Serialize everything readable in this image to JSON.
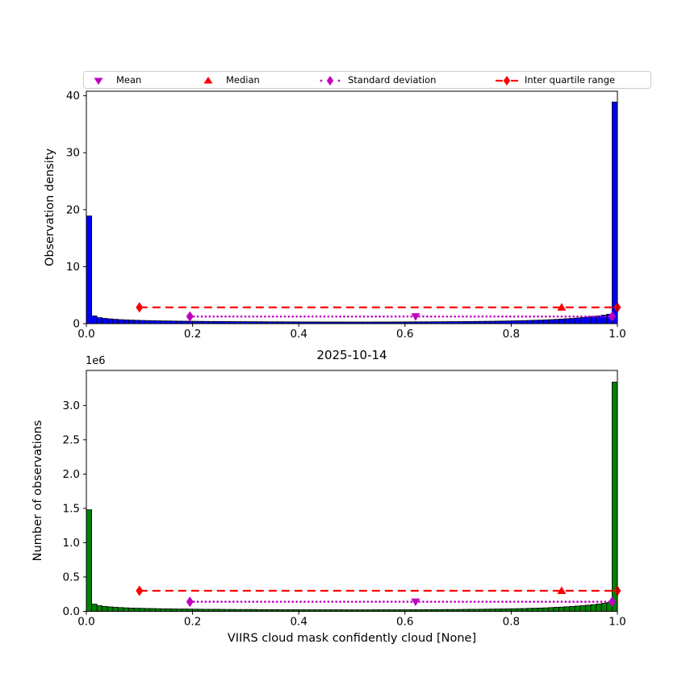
{
  "figure": {
    "background": "#ffffff",
    "legend": {
      "position": "top",
      "columns": 4,
      "items": [
        {
          "label": "Mean",
          "marker": "triangle-down",
          "line": "none",
          "color": "#bf00bf"
        },
        {
          "label": "Median",
          "marker": "triangle-up",
          "line": "none",
          "color": "#ff0000"
        },
        {
          "label": "Standard deviation",
          "marker": "thin-diamond",
          "line": "dotted",
          "color": "#bf00bf"
        },
        {
          "label": "Inter quartile range",
          "marker": "thin-diamond",
          "line": "dashed",
          "color": "#ff0000"
        }
      ]
    }
  },
  "chart_data": [
    {
      "type": "bar",
      "subtype": "histogram",
      "title": "",
      "ylabel": "Observation density",
      "xlabel": "",
      "bar_color": "#0000ff",
      "bar_edge_color": "#000000",
      "grid": false,
      "xlim": [
        0.0,
        1.0
      ],
      "ylim": [
        0,
        40.8
      ],
      "xticks": [
        0.0,
        0.2,
        0.4,
        0.6,
        0.8,
        1.0
      ],
      "xtick_labels": [
        "0.0",
        "0.2",
        "0.4",
        "0.6",
        "0.8",
        "1.0"
      ],
      "yticks": [
        0,
        10,
        20,
        30,
        40
      ],
      "ytick_labels": [
        "0",
        "10",
        "20",
        "30",
        "40"
      ],
      "bin_start": 0.0,
      "bin_width": 0.01,
      "values": [
        18.9,
        1.35,
        1.05,
        0.92,
        0.83,
        0.76,
        0.7,
        0.66,
        0.62,
        0.59,
        0.56,
        0.54,
        0.52,
        0.5,
        0.48,
        0.47,
        0.45,
        0.44,
        0.43,
        0.42,
        0.41,
        0.4,
        0.39,
        0.38,
        0.38,
        0.37,
        0.36,
        0.36,
        0.35,
        0.35,
        0.34,
        0.34,
        0.33,
        0.33,
        0.32,
        0.32,
        0.32,
        0.31,
        0.31,
        0.31,
        0.3,
        0.3,
        0.3,
        0.3,
        0.29,
        0.29,
        0.29,
        0.29,
        0.29,
        0.28,
        0.28,
        0.28,
        0.28,
        0.28,
        0.29,
        0.29,
        0.29,
        0.29,
        0.3,
        0.3,
        0.3,
        0.31,
        0.31,
        0.32,
        0.32,
        0.33,
        0.33,
        0.34,
        0.35,
        0.35,
        0.36,
        0.37,
        0.38,
        0.39,
        0.4,
        0.41,
        0.42,
        0.44,
        0.45,
        0.47,
        0.49,
        0.51,
        0.53,
        0.56,
        0.59,
        0.62,
        0.66,
        0.7,
        0.75,
        0.8,
        0.86,
        0.92,
        0.99,
        1.07,
        1.16,
        1.26,
        1.37,
        1.5,
        1.65,
        38.9
      ],
      "overlays": {
        "mean_marker": {
          "x": 0.62,
          "y": 1.25,
          "marker": "triangle-down",
          "color": "#bf00bf"
        },
        "median_marker": {
          "x": 0.895,
          "y": 2.85,
          "marker": "triangle-up",
          "color": "#ff0000"
        },
        "std_line": {
          "x_start": 0.195,
          "x_end": 0.99,
          "y": 1.25,
          "style": "dotted",
          "end_marker": "thin-diamond",
          "color": "#bf00bf"
        },
        "iqr_line": {
          "x_start": 0.1,
          "x_end": 1.0,
          "y": 2.85,
          "style": "dashed",
          "end_marker": "thin-diamond",
          "color": "#ff0000"
        }
      }
    },
    {
      "type": "bar",
      "subtype": "histogram",
      "title": "2025-10-14",
      "ylabel": "Number of observations",
      "xlabel": "VIIRS cloud mask confidently cloud [None]",
      "y_offset_label": "1e6",
      "y_unit_multiplier": 1000000,
      "bar_color": "#008000",
      "bar_edge_color": "#000000",
      "grid": false,
      "xlim": [
        0.0,
        1.0
      ],
      "ylim": [
        0,
        3.51
      ],
      "xticks": [
        0.0,
        0.2,
        0.4,
        0.6,
        0.8,
        1.0
      ],
      "xtick_labels": [
        "0.0",
        "0.2",
        "0.4",
        "0.6",
        "0.8",
        "1.0"
      ],
      "yticks": [
        0.0,
        0.5,
        1.0,
        1.5,
        2.0,
        2.5,
        3.0
      ],
      "ytick_labels": [
        "0.0",
        "0.5",
        "1.0",
        "1.5",
        "2.0",
        "2.5",
        "3.0"
      ],
      "bin_start": 0.0,
      "bin_width": 0.01,
      "values": [
        1.48,
        0.105,
        0.082,
        0.072,
        0.065,
        0.059,
        0.055,
        0.051,
        0.048,
        0.046,
        0.044,
        0.042,
        0.041,
        0.039,
        0.037,
        0.037,
        0.035,
        0.034,
        0.034,
        0.033,
        0.032,
        0.031,
        0.03,
        0.03,
        0.03,
        0.029,
        0.028,
        0.028,
        0.027,
        0.027,
        0.027,
        0.027,
        0.026,
        0.026,
        0.025,
        0.025,
        0.025,
        0.024,
        0.024,
        0.024,
        0.023,
        0.023,
        0.023,
        0.023,
        0.023,
        0.023,
        0.023,
        0.023,
        0.023,
        0.022,
        0.022,
        0.022,
        0.022,
        0.022,
        0.023,
        0.023,
        0.023,
        0.023,
        0.023,
        0.023,
        0.023,
        0.024,
        0.024,
        0.025,
        0.025,
        0.026,
        0.026,
        0.027,
        0.027,
        0.027,
        0.028,
        0.029,
        0.03,
        0.03,
        0.031,
        0.032,
        0.033,
        0.034,
        0.035,
        0.037,
        0.038,
        0.04,
        0.041,
        0.044,
        0.046,
        0.048,
        0.051,
        0.055,
        0.059,
        0.062,
        0.067,
        0.072,
        0.077,
        0.083,
        0.09,
        0.098,
        0.107,
        0.117,
        0.129,
        3.34
      ],
      "overlays": {
        "mean_marker": {
          "x": 0.62,
          "y": 0.14,
          "marker": "triangle-down",
          "color": "#bf00bf"
        },
        "median_marker": {
          "x": 0.895,
          "y": 0.3,
          "marker": "triangle-up",
          "color": "#ff0000"
        },
        "std_line": {
          "x_start": 0.195,
          "x_end": 0.99,
          "y": 0.14,
          "style": "dotted",
          "end_marker": "thin-diamond",
          "color": "#bf00bf"
        },
        "iqr_line": {
          "x_start": 0.1,
          "x_end": 1.0,
          "y": 0.3,
          "style": "dashed",
          "end_marker": "thin-diamond",
          "color": "#ff0000"
        }
      }
    }
  ]
}
